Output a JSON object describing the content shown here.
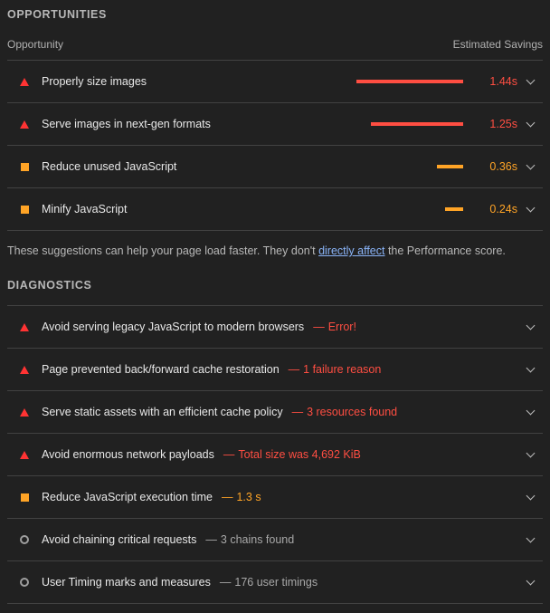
{
  "opportunities": {
    "heading": "OPPORTUNITIES",
    "col_left": "Opportunity",
    "col_right": "Estimated Savings",
    "items": [
      {
        "title": "Properly size images",
        "savings": "1.44s",
        "status": "fail",
        "bar_fraction": 1.0
      },
      {
        "title": "Serve images in next-gen formats",
        "savings": "1.25s",
        "status": "fail",
        "bar_fraction": 0.868
      },
      {
        "title": "Reduce unused JavaScript",
        "savings": "0.36s",
        "status": "warn",
        "bar_fraction": 0.25
      },
      {
        "title": "Minify JavaScript",
        "savings": "0.24s",
        "status": "warn",
        "bar_fraction": 0.167
      }
    ],
    "note_before": "These suggestions can help your page load faster. They don't ",
    "note_link": "directly affect",
    "note_after": " the Performance score."
  },
  "diagnostics": {
    "heading": "DIAGNOSTICS",
    "items": [
      {
        "title": "Avoid serving legacy JavaScript to modern browsers",
        "summary": "Error!",
        "status": "fail"
      },
      {
        "title": "Page prevented back/forward cache restoration",
        "summary": "1 failure reason",
        "status": "fail"
      },
      {
        "title": "Serve static assets with an efficient cache policy",
        "summary": "3 resources found",
        "status": "fail"
      },
      {
        "title": "Avoid enormous network payloads",
        "summary": "Total size was 4,692 KiB",
        "status": "fail"
      },
      {
        "title": "Reduce JavaScript execution time",
        "summary": "1.3 s",
        "status": "warn"
      },
      {
        "title": "Avoid chaining critical requests",
        "summary": "3 chains found",
        "status": "info"
      },
      {
        "title": "User Timing marks and measures",
        "summary": "176 user timings",
        "status": "info"
      }
    ]
  },
  "separator": "—",
  "colors": {
    "fail": "#ff4e42",
    "warn": "#ffa426",
    "info": "#9e9e9e"
  }
}
